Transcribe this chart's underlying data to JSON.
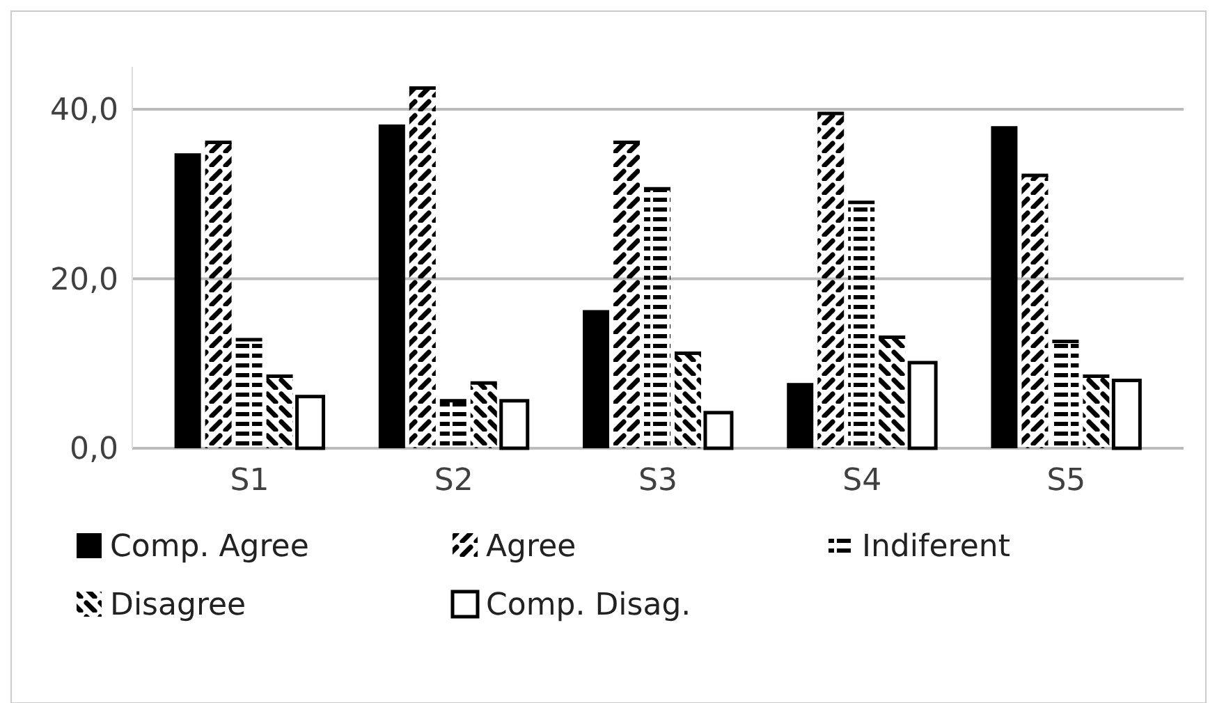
{
  "chart_data": {
    "type": "bar",
    "categories": [
      "S1",
      "S2",
      "S3",
      "S4",
      "S5"
    ],
    "series": [
      {
        "name": "Comp. Agree",
        "color": "#000000",
        "values": [
          34.8,
          38.2,
          16.3,
          7.7,
          38.0
        ]
      },
      {
        "name": "Agree",
        "color": "#000000",
        "values": [
          36.1,
          42.5,
          36.1,
          39.5,
          32.2
        ]
      },
      {
        "name": "Indiferent",
        "color": "#000000",
        "values": [
          12.8,
          5.6,
          30.6,
          29.0,
          12.6
        ]
      },
      {
        "name": "Disagree",
        "color": "#000000",
        "values": [
          8.5,
          7.7,
          11.2,
          13.1,
          8.5
        ]
      },
      {
        "name": "Comp. Disag.",
        "color": "#ffffff",
        "values": [
          6.1,
          5.6,
          4.2,
          10.1,
          8.0
        ]
      }
    ],
    "ylim": [
      0,
      45
    ],
    "yticks": [
      {
        "value": 0,
        "label": "0,0"
      },
      {
        "value": 20,
        "label": "20,0"
      },
      {
        "value": 40,
        "label": "40,0"
      }
    ],
    "grid": "y",
    "legend": "bottom"
  }
}
